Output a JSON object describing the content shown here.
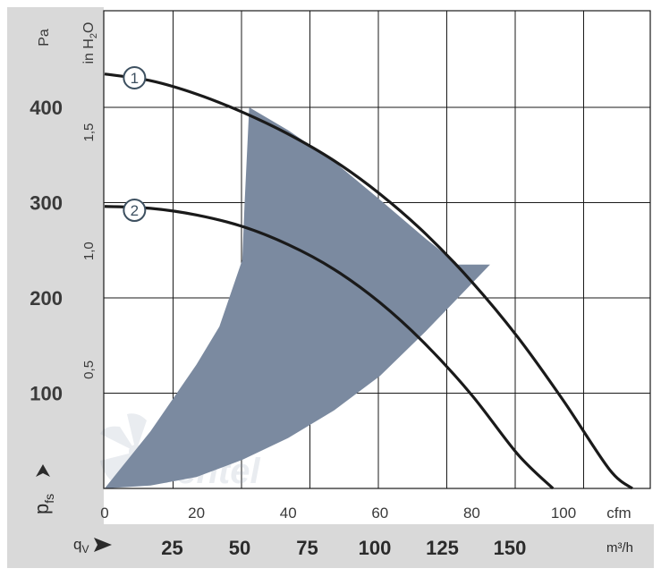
{
  "chart_data": {
    "type": "line",
    "y_axis_left": {
      "unit": "Pa",
      "ticks": [
        "100",
        "200",
        "300",
        "400"
      ],
      "range": [
        0,
        500
      ],
      "symbol_main": "p",
      "symbol_sub": "fs"
    },
    "y_axis_inner": {
      "unit_main": "in H",
      "unit_sub": "2",
      "unit_tail": "O",
      "ticks": [
        "0,5",
        "1,0",
        "1,5"
      ],
      "values": [
        0.5,
        1.0,
        1.5
      ]
    },
    "x_axis_cfm": {
      "unit": "cfm",
      "ticks": [
        "0",
        "20",
        "40",
        "60",
        "80",
        "100"
      ],
      "values": [
        0,
        20,
        40,
        60,
        80,
        100
      ],
      "range": [
        0,
        115
      ]
    },
    "x_axis_m3h": {
      "symbol_main": "q",
      "symbol_sub": "V",
      "unit": "m³/h",
      "ticks": [
        "25",
        "50",
        "75",
        "100",
        "125",
        "150"
      ],
      "values": [
        25,
        50,
        75,
        100,
        125,
        150
      ]
    },
    "series": [
      {
        "label": "1",
        "color": "#1a1a1a",
        "x_cfm": [
          0,
          10,
          20,
          30,
          40,
          50,
          60,
          70,
          80,
          90,
          100,
          110,
          115
        ],
        "y_pa": [
          435,
          428,
          414,
          395,
          372,
          344,
          309,
          267,
          217,
          159,
          92,
          20,
          0
        ]
      },
      {
        "label": "2",
        "color": "#1a1a1a",
        "x_cfm": [
          0,
          10,
          20,
          30,
          40,
          50,
          60,
          70,
          80,
          90,
          97.7
        ],
        "y_pa": [
          296,
          294,
          287,
          275,
          256,
          230,
          195,
          151,
          98,
          36,
          0
        ]
      }
    ],
    "operating_range": {
      "color": "#7b8aa0",
      "outer_x_cfm": [
        0,
        10,
        20,
        25,
        30,
        30.5,
        31.5
      ],
      "outer_y_pa": [
        0,
        60,
        130,
        170,
        240,
        300,
        400
      ],
      "upper_x_cfm": [
        31.5,
        40,
        50,
        60,
        70,
        77,
        84
      ],
      "upper_y_pa": [
        400,
        376,
        343,
        303,
        262,
        235,
        235
      ],
      "lower_x_cfm": [
        84,
        77,
        70,
        60,
        50,
        40,
        30,
        20,
        10,
        0
      ],
      "lower_y_pa": [
        235,
        200,
        165,
        118,
        82,
        53,
        30,
        12,
        3,
        0
      ]
    },
    "grid": true,
    "watermark": "ventel"
  }
}
